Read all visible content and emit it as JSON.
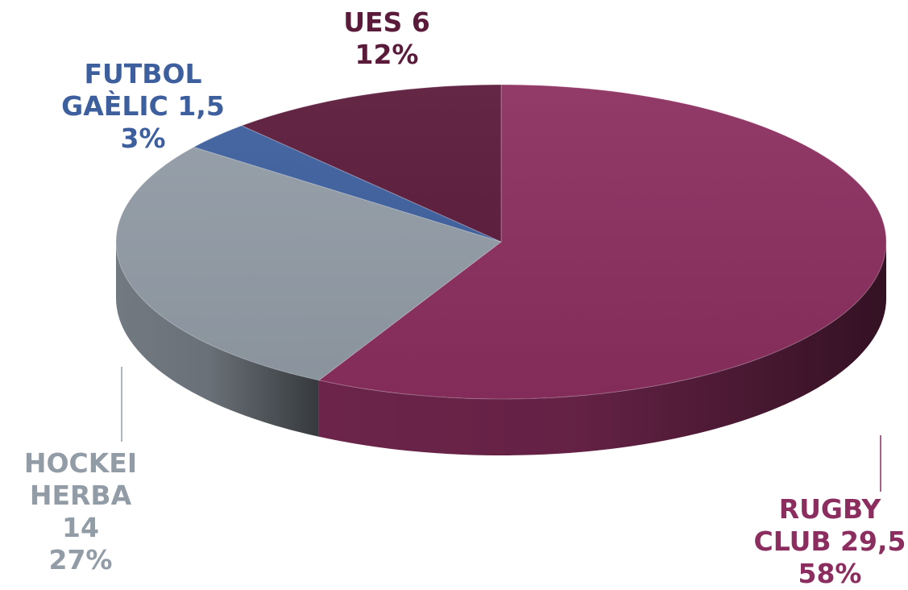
{
  "chart_data": {
    "type": "pie",
    "style": "3d",
    "slices": [
      {
        "label": "RUGBY CLUB",
        "value": 29.5,
        "value_text": "29,5",
        "percent": "58%",
        "color": "#8b2e5f",
        "label_lines": [
          "RUGBY",
          "CLUB 29,5",
          "58%"
        ]
      },
      {
        "label": "HOCKEI HERBA",
        "value": 14,
        "value_text": "14",
        "percent": "27%",
        "color": "#929ca6",
        "label_lines": [
          "HOCKEI",
          "HERBA 14",
          "27%"
        ]
      },
      {
        "label": "FUTBOL GAÈLIC",
        "value": 1.5,
        "value_text": "1,5",
        "percent": "3%",
        "color": "#3d5f9e",
        "label_lines": [
          "FUTBOL",
          "GAÈLIC 1,5",
          "3%"
        ]
      },
      {
        "label": "UES",
        "value": 6,
        "value_text": "6",
        "percent": "12%",
        "color": "#5a1a3a",
        "label_lines": [
          "UES 6",
          "12%"
        ]
      }
    ]
  }
}
